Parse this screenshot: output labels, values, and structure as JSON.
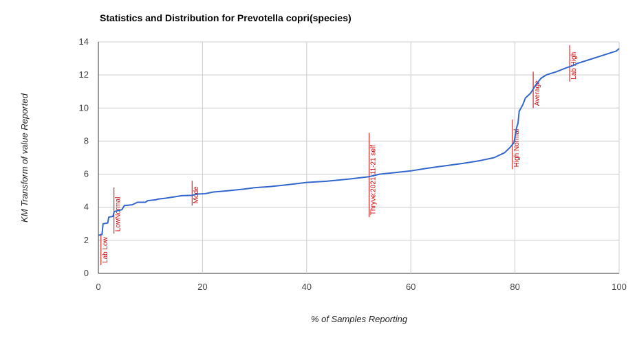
{
  "chart_data": {
    "type": "line",
    "title": "Statistics and Distribution for Prevotella copri(species)",
    "xlabel": "% of Samples Reporting",
    "ylabel": "KM Transform of value Reported",
    "xlim": [
      0,
      100
    ],
    "ylim": [
      0,
      14
    ],
    "x_ticks": [
      "0",
      "20",
      "40",
      "60",
      "80",
      "100"
    ],
    "y_ticks": [
      "0",
      "2",
      "4",
      "6",
      "8",
      "10",
      "12",
      "14"
    ],
    "grid": true,
    "colors": {
      "line": "#3366cc",
      "annotation": "#cc0000",
      "grid": "#cccccc"
    },
    "series": [
      {
        "points": [
          [
            0,
            2.3
          ],
          [
            0.7,
            2.35
          ],
          [
            0.9,
            3.0
          ],
          [
            1.8,
            3.05
          ],
          [
            2.0,
            3.4
          ],
          [
            2.8,
            3.45
          ],
          [
            3.0,
            3.7
          ],
          [
            3.2,
            3.75
          ],
          [
            4.5,
            3.85
          ],
          [
            5.0,
            4.1
          ],
          [
            6.5,
            4.15
          ],
          [
            7.5,
            4.3
          ],
          [
            9.0,
            4.3
          ],
          [
            9.5,
            4.4
          ],
          [
            11.0,
            4.45
          ],
          [
            11.5,
            4.5
          ],
          [
            13.0,
            4.55
          ],
          [
            14.0,
            4.6
          ],
          [
            16.0,
            4.7
          ],
          [
            18.0,
            4.72
          ],
          [
            19.0,
            4.8
          ],
          [
            20.5,
            4.82
          ],
          [
            22.0,
            4.92
          ],
          [
            25.0,
            5.0
          ],
          [
            28.0,
            5.1
          ],
          [
            30.0,
            5.18
          ],
          [
            33.0,
            5.25
          ],
          [
            36.0,
            5.35
          ],
          [
            40.0,
            5.5
          ],
          [
            44.0,
            5.58
          ],
          [
            48.0,
            5.7
          ],
          [
            52.0,
            5.85
          ],
          [
            54.0,
            6.0
          ],
          [
            57.0,
            6.1
          ],
          [
            60.0,
            6.2
          ],
          [
            63.0,
            6.35
          ],
          [
            66.0,
            6.48
          ],
          [
            70.0,
            6.65
          ],
          [
            73.0,
            6.8
          ],
          [
            76.0,
            7.0
          ],
          [
            78.0,
            7.3
          ],
          [
            79.0,
            7.6
          ],
          [
            79.8,
            7.9
          ],
          [
            80.3,
            8.8
          ],
          [
            80.6,
            9.1
          ],
          [
            80.8,
            9.8
          ],
          [
            81.5,
            10.2
          ],
          [
            82.0,
            10.6
          ],
          [
            83.0,
            10.9
          ],
          [
            84.0,
            11.4
          ],
          [
            85.0,
            11.8
          ],
          [
            86.0,
            12.0
          ],
          [
            88.0,
            12.2
          ],
          [
            90.0,
            12.45
          ],
          [
            91.0,
            12.55
          ],
          [
            92.0,
            12.7
          ],
          [
            94.0,
            12.9
          ],
          [
            96.0,
            13.1
          ],
          [
            98.0,
            13.3
          ],
          [
            99.5,
            13.45
          ],
          [
            100.0,
            13.6
          ]
        ]
      }
    ],
    "annotations": [
      {
        "label": "Lab Low",
        "x": 0.5,
        "y_low": 0.5,
        "y_high": 2.4
      },
      {
        "label": "LowNormal",
        "x": 3.0,
        "y_low": 2.4,
        "y_high": 5.2
      },
      {
        "label": "Mode",
        "x": 18.0,
        "y_low": 4.1,
        "y_high": 5.6
      },
      {
        "label": "Thryve:2021-11-21 self",
        "x": 52.0,
        "y_low": 3.4,
        "y_high": 8.5
      },
      {
        "label": "High Normal",
        "x": 79.5,
        "y_low": 6.3,
        "y_high": 9.3
      },
      {
        "label": "Average",
        "x": 83.5,
        "y_low": 10.0,
        "y_high": 12.2
      },
      {
        "label": "Lab High",
        "x": 90.5,
        "y_low": 11.6,
        "y_high": 13.8
      }
    ]
  }
}
